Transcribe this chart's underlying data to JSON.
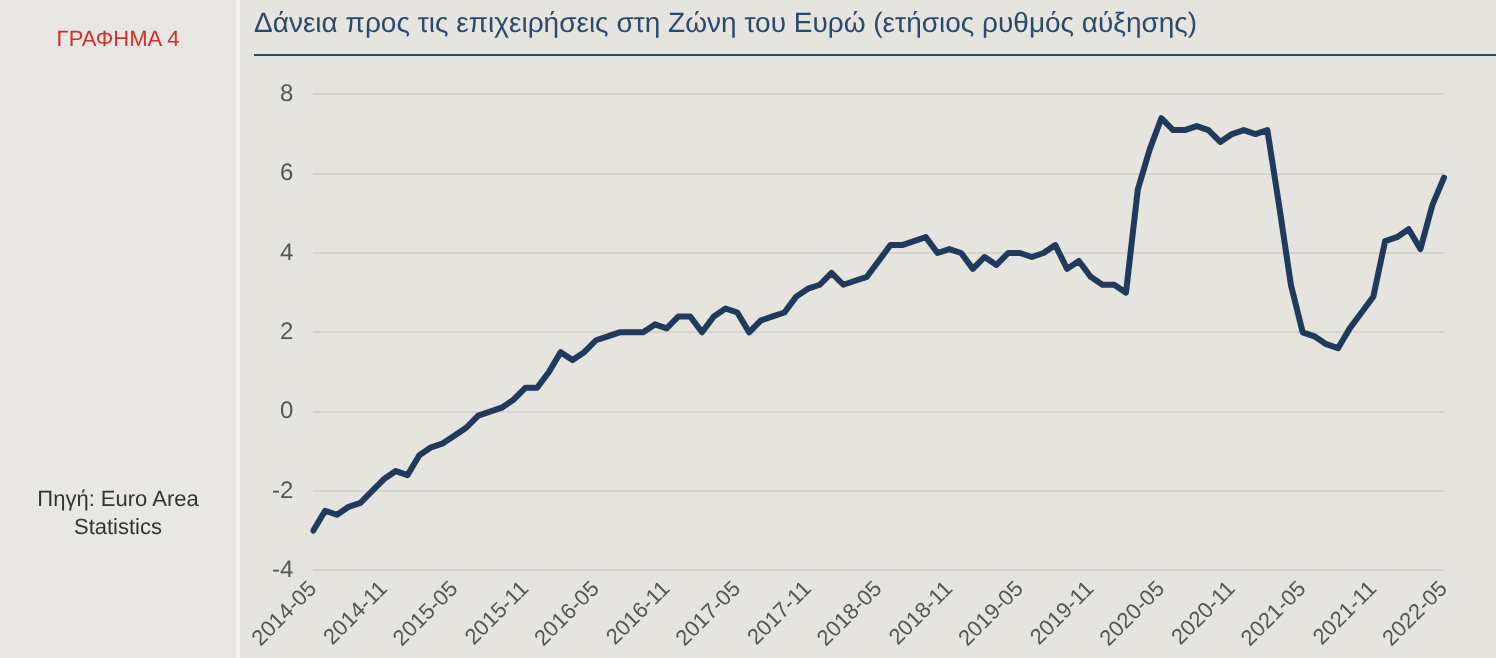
{
  "chart_data": {
    "type": "line",
    "title": "Δάνεια προς τις επιχειρήσεις στη Ζώνη του Ευρώ (ετήσιος ρυθμός αύξησης)",
    "annotations": [
      "ΓΡΑΦΗΜΑ 4",
      "Πηγή: Euro Area Statistics"
    ],
    "categories": [
      "2014-05",
      null,
      null,
      null,
      null,
      null,
      "2014-11",
      null,
      null,
      null,
      null,
      null,
      "2015-05",
      null,
      null,
      null,
      null,
      null,
      "2015-11",
      null,
      null,
      null,
      null,
      null,
      "2016-05",
      null,
      null,
      null,
      null,
      null,
      "2016-11",
      null,
      null,
      null,
      null,
      null,
      "2017-05",
      null,
      null,
      null,
      null,
      null,
      "2017-11",
      null,
      null,
      null,
      null,
      null,
      "2018-05",
      null,
      null,
      null,
      null,
      null,
      "2018-11",
      null,
      null,
      null,
      null,
      null,
      "2019-05",
      null,
      null,
      null,
      null,
      null,
      "2019-11",
      null,
      null,
      null,
      null,
      null,
      "2020-05",
      null,
      null,
      null,
      null,
      null,
      "2020-11",
      null,
      null,
      null,
      null,
      null,
      "2021-05",
      null,
      null,
      null,
      null,
      null,
      "2021-11",
      null,
      null,
      null,
      null,
      null,
      "2022-05"
    ],
    "series": [
      {
        "color": "#1f3a5c",
        "values": [
          -3.0,
          -2.5,
          -2.6,
          -2.4,
          -2.3,
          -2.0,
          -1.7,
          -1.5,
          -1.6,
          -1.1,
          -0.9,
          -0.8,
          -0.6,
          -0.4,
          -0.1,
          0.0,
          0.1,
          0.3,
          0.6,
          0.6,
          1.0,
          1.5,
          1.3,
          1.5,
          1.8,
          1.9,
          2.0,
          2.0,
          2.0,
          2.2,
          2.1,
          2.4,
          2.4,
          2.0,
          2.4,
          2.6,
          2.5,
          2.0,
          2.3,
          2.4,
          2.5,
          2.9,
          3.1,
          3.2,
          3.5,
          3.2,
          3.3,
          3.4,
          3.8,
          4.2,
          4.2,
          4.3,
          4.4,
          4.0,
          4.1,
          4.0,
          3.6,
          3.9,
          3.7,
          4.0,
          4.0,
          3.9,
          4.0,
          4.2,
          3.6,
          3.8,
          3.4,
          3.2,
          3.2,
          3.0,
          5.6,
          6.6,
          7.4,
          7.1,
          7.1,
          7.2,
          7.1,
          6.8,
          7.0,
          7.1,
          7.0,
          7.1,
          5.2,
          3.2,
          2.0,
          1.9,
          1.7,
          1.6,
          2.1,
          2.5,
          2.9,
          4.3,
          4.4,
          4.6,
          4.1,
          5.2,
          5.9
        ]
      }
    ],
    "ylim": [
      -4,
      8
    ],
    "yticks": [
      -4,
      -2,
      0,
      2,
      4,
      6,
      8
    ],
    "grid": "y",
    "legend": false,
    "marker": "none",
    "line_style": "solid"
  }
}
